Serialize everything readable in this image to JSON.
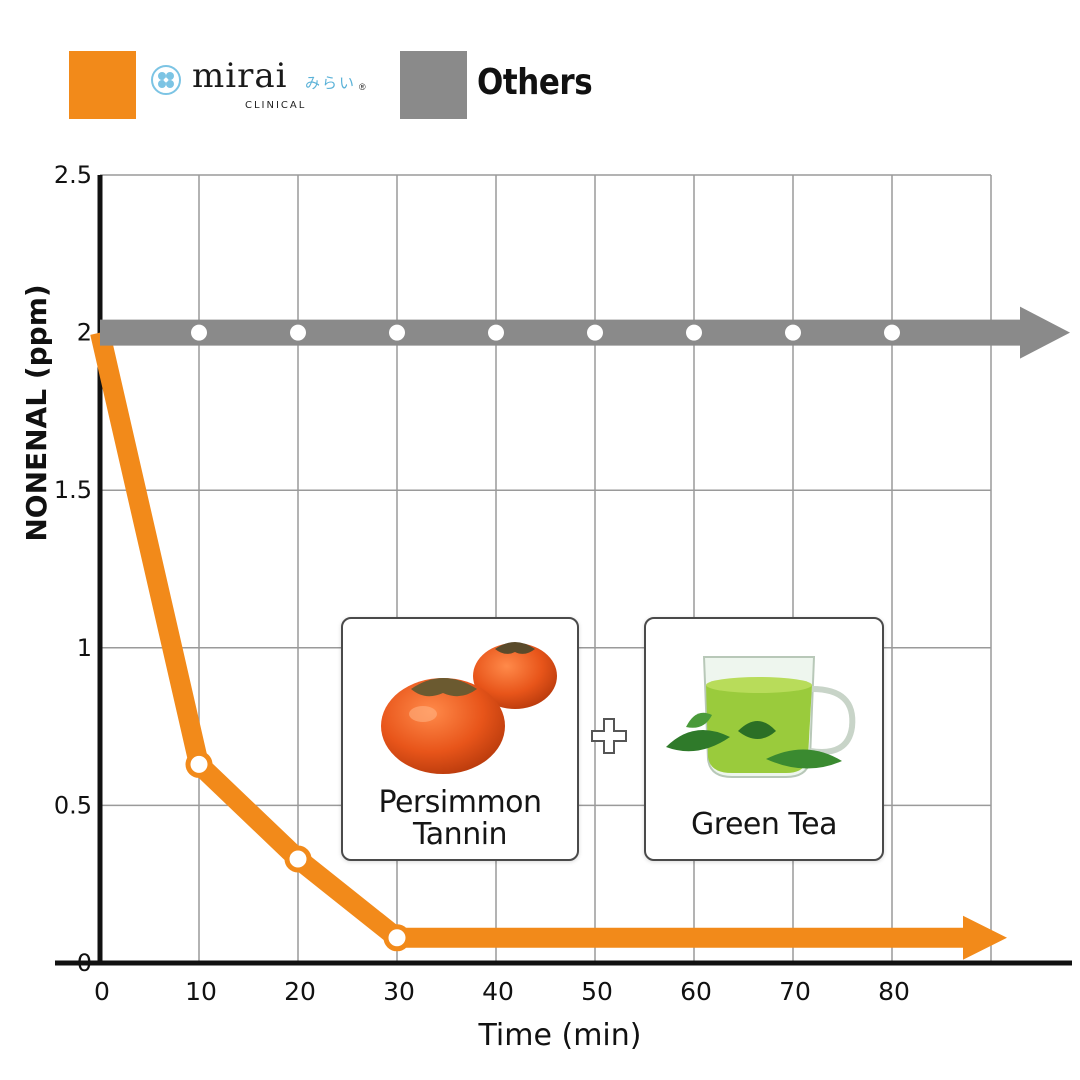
{
  "legend": {
    "brand": {
      "name": "mirai",
      "japanese": "みらい",
      "registered": "®",
      "subtitle": "CLINICAL",
      "color": "#f28a1a"
    },
    "others": {
      "label": "Others",
      "color": "#8a8a8a"
    }
  },
  "cards": {
    "persimmon": {
      "line1": "Persimmon",
      "line2": "Tannin"
    },
    "plus": "+",
    "tea": {
      "label": "Green Tea"
    }
  },
  "chart_data": {
    "type": "line",
    "xlabel": "Time (min)",
    "ylabel": "NONENAL (ppm)",
    "xlim": [
      0,
      90
    ],
    "ylim": [
      0,
      2.5
    ],
    "x_ticks": [
      "0",
      "10",
      "20",
      "30",
      "40",
      "50",
      "60",
      "70",
      "80"
    ],
    "y_ticks": [
      "0",
      "0.5",
      "1",
      "1.5",
      "2",
      "2.5"
    ],
    "grid": true,
    "series": [
      {
        "name": "mirai CLINICAL",
        "color": "#f28a1a",
        "x": [
          0,
          10,
          20,
          30
        ],
        "y": [
          2,
          0.63,
          0.33,
          0.08
        ],
        "continues_with_arrow": true
      },
      {
        "name": "Others",
        "color": "#8a8a8a",
        "x": [
          0,
          10,
          20,
          30,
          40,
          50,
          60,
          70,
          80
        ],
        "y": [
          2,
          2,
          2,
          2,
          2,
          2,
          2,
          2,
          2
        ],
        "continues_with_arrow": true
      }
    ]
  }
}
